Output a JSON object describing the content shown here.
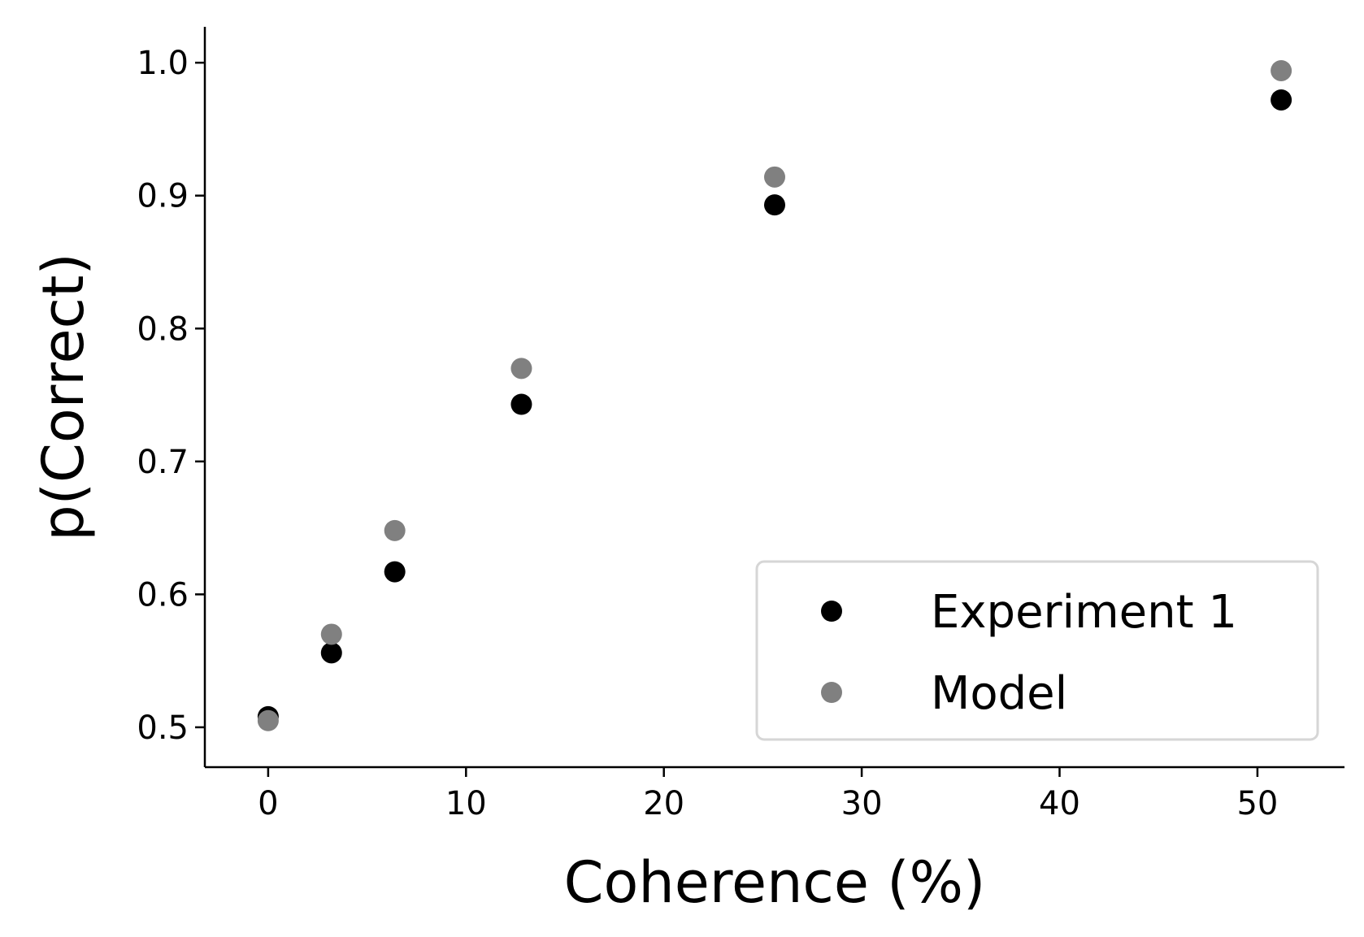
{
  "chart_data": {
    "type": "scatter",
    "title": "",
    "xlabel": "Coherence (%)",
    "ylabel": "p(Correct)",
    "xlim": [
      -3.2,
      54.4
    ],
    "ylim": [
      0.47,
      1.027
    ],
    "xticks": [
      0,
      10,
      20,
      30,
      40,
      50
    ],
    "yticks": [
      0.5,
      0.6,
      0.7,
      0.8,
      0.9,
      1.0
    ],
    "xtick_labels": [
      "0",
      "10",
      "20",
      "30",
      "40",
      "50"
    ],
    "ytick_labels": [
      "0.5",
      "0.6",
      "0.7",
      "0.8",
      "0.9",
      "1.0"
    ],
    "grid": false,
    "legend_position": "lower-right",
    "series": [
      {
        "name": "Experiment 1",
        "color": "#000000",
        "x": [
          0,
          3.2,
          6.4,
          12.8,
          25.6,
          51.2
        ],
        "y": [
          0.508,
          0.556,
          0.617,
          0.743,
          0.893,
          0.972
        ]
      },
      {
        "name": "Model",
        "color": "#808080",
        "x": [
          0,
          3.2,
          6.4,
          12.8,
          25.6,
          51.2
        ],
        "y": [
          0.505,
          0.57,
          0.648,
          0.77,
          0.914,
          0.994
        ]
      }
    ]
  }
}
